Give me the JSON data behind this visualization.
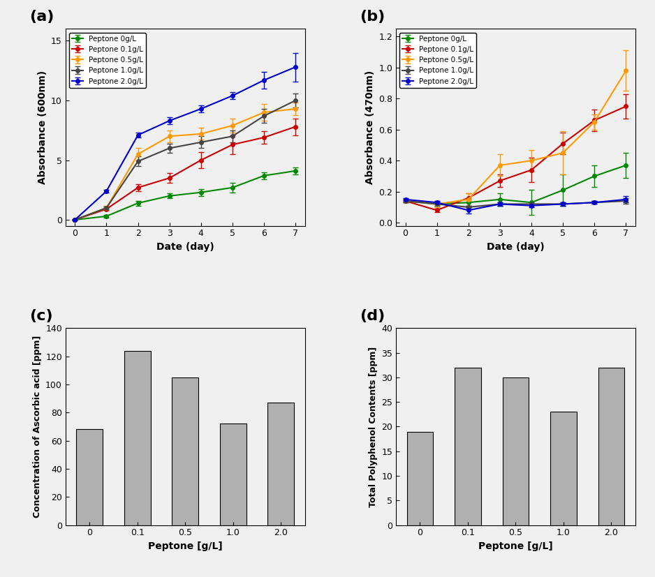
{
  "panel_labels": [
    "(a)",
    "(b)",
    "(c)",
    "(d)"
  ],
  "line_colors": [
    "#008800",
    "#cc0000",
    "#ff9900",
    "#444444",
    "#0000cc"
  ],
  "legend_labels": [
    "Peptone 0g/L",
    "Peptone 0.1g/L",
    "Peptone 0.5g/L",
    "Peptone 1.0g/L",
    "Peptone 2.0g/L"
  ],
  "days": [
    0,
    1,
    2,
    3,
    4,
    5,
    6,
    7
  ],
  "od_values": [
    [
      0.0,
      0.3,
      1.4,
      2.0,
      2.3,
      2.7,
      3.7,
      4.1
    ],
    [
      0.0,
      0.9,
      2.7,
      3.5,
      5.0,
      6.3,
      6.9,
      7.8
    ],
    [
      0.0,
      1.0,
      5.5,
      7.0,
      7.2,
      7.9,
      9.0,
      9.3
    ],
    [
      0.0,
      1.0,
      4.9,
      6.0,
      6.5,
      7.0,
      8.7,
      10.0
    ],
    [
      0.0,
      2.4,
      7.1,
      8.3,
      9.3,
      10.4,
      11.7,
      12.8
    ]
  ],
  "od_errors": [
    [
      0.0,
      0.1,
      0.2,
      0.2,
      0.3,
      0.4,
      0.3,
      0.3
    ],
    [
      0.0,
      0.1,
      0.3,
      0.4,
      0.7,
      0.8,
      0.5,
      0.7
    ],
    [
      0.0,
      0.2,
      0.5,
      0.5,
      0.5,
      0.6,
      0.7,
      0.5
    ],
    [
      0.0,
      0.1,
      0.4,
      0.4,
      0.5,
      0.5,
      0.6,
      0.6
    ],
    [
      0.0,
      0.1,
      0.2,
      0.3,
      0.3,
      0.3,
      0.7,
      1.2
    ]
  ],
  "abs470_values": [
    [
      0.14,
      0.12,
      0.13,
      0.15,
      0.13,
      0.21,
      0.3,
      0.37
    ],
    [
      0.14,
      0.08,
      0.16,
      0.27,
      0.34,
      0.51,
      0.66,
      0.75
    ],
    [
      0.14,
      0.12,
      0.15,
      0.37,
      0.4,
      0.45,
      0.65,
      0.98
    ],
    [
      0.14,
      0.12,
      0.1,
      0.12,
      0.12,
      0.12,
      0.13,
      0.14
    ],
    [
      0.15,
      0.13,
      0.08,
      0.12,
      0.11,
      0.12,
      0.13,
      0.15
    ]
  ],
  "abs470_errors": [
    [
      0.01,
      0.01,
      0.02,
      0.04,
      0.08,
      0.1,
      0.07,
      0.08
    ],
    [
      0.01,
      0.01,
      0.03,
      0.04,
      0.08,
      0.07,
      0.07,
      0.08
    ],
    [
      0.01,
      0.02,
      0.04,
      0.07,
      0.07,
      0.14,
      0.05,
      0.13
    ],
    [
      0.01,
      0.01,
      0.01,
      0.01,
      0.01,
      0.01,
      0.01,
      0.02
    ],
    [
      0.01,
      0.01,
      0.02,
      0.01,
      0.01,
      0.01,
      0.01,
      0.02
    ]
  ],
  "bar_categories": [
    "0",
    "0.1",
    "0.5",
    "1.0",
    "2.0"
  ],
  "dpph_values": [
    68,
    124,
    105,
    72,
    87
  ],
  "tpc_values": [
    19,
    32,
    30,
    23,
    32
  ],
  "bar_color": "#b0b0b0",
  "background_color": "#f0f0f0"
}
